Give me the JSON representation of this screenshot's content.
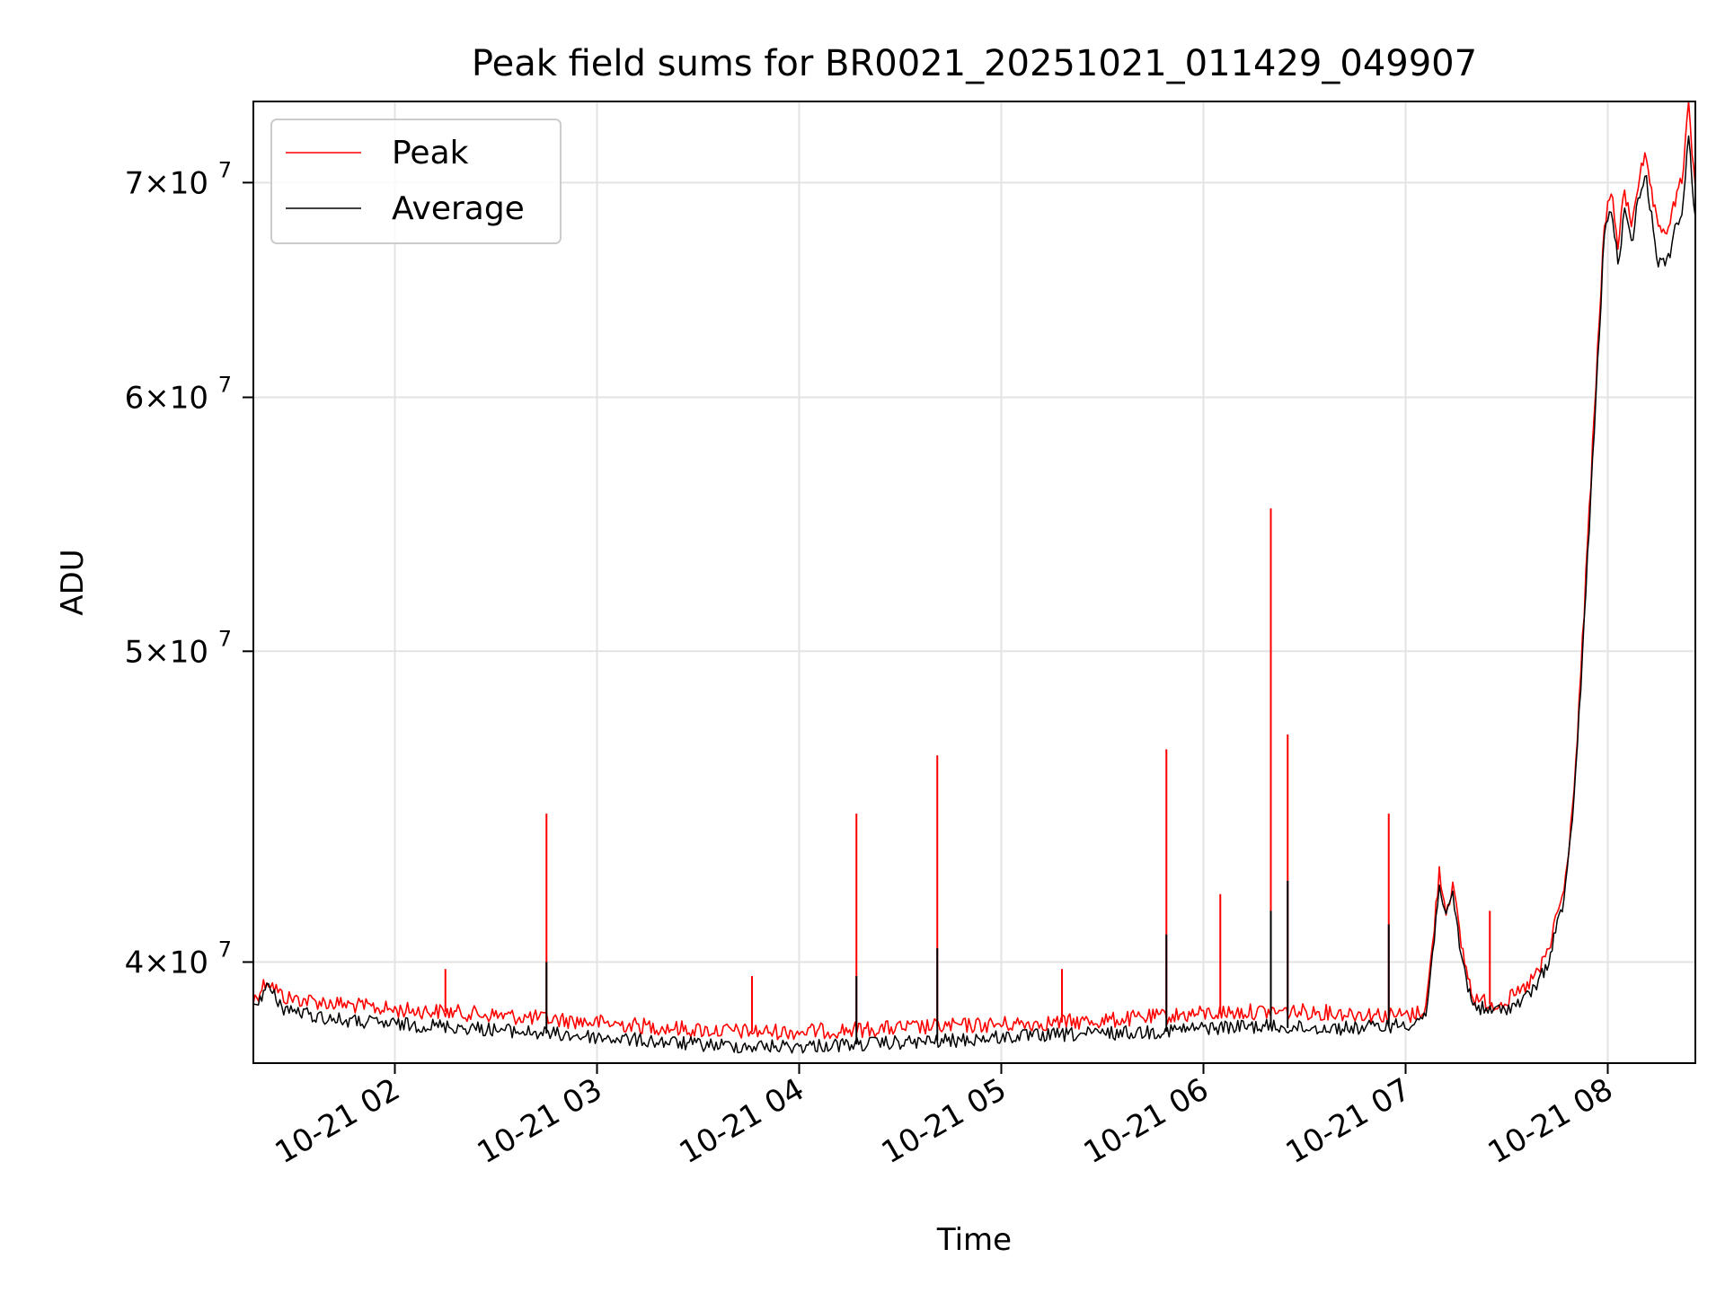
{
  "chart_data": {
    "type": "line",
    "title": "Peak field sums for BR0021_20251021_011429_049907",
    "xlabel": "Time",
    "ylabel": "ADU",
    "xlim": [
      "2025-10-21 01:18",
      "2025-10-21 08:26"
    ],
    "ylim": [
      37200000,
      74200000
    ],
    "yscale": "log",
    "grid": true,
    "legend_position": "upper-left",
    "x_ticks": [
      {
        "value": "2025-10-21 02:00",
        "label": "10-21 02"
      },
      {
        "value": "2025-10-21 03:00",
        "label": "10-21 03"
      },
      {
        "value": "2025-10-21 04:00",
        "label": "10-21 04"
      },
      {
        "value": "2025-10-21 05:00",
        "label": "10-21 05"
      },
      {
        "value": "2025-10-21 06:00",
        "label": "10-21 06"
      },
      {
        "value": "2025-10-21 07:00",
        "label": "10-21 07"
      },
      {
        "value": "2025-10-21 08:00",
        "label": "10-21 08"
      }
    ],
    "y_ticks": [
      {
        "value": 40000000,
        "mantissa": "4",
        "exponent": "7"
      },
      {
        "value": 50000000,
        "mantissa": "5",
        "exponent": "7"
      },
      {
        "value": 60000000,
        "mantissa": "6",
        "exponent": "7"
      },
      {
        "value": 70000000,
        "mantissa": "7",
        "exponent": "7"
      }
    ],
    "series": [
      {
        "name": "Peak",
        "color": "#ff0000",
        "points": [
          [
            "2025-10-21 01:18",
            38900000
          ],
          [
            "2025-10-21 01:22",
            39500000
          ],
          [
            "2025-10-21 01:27",
            39000000
          ],
          [
            "2025-10-21 01:35",
            38900000
          ],
          [
            "2025-10-21 01:45",
            38800000
          ],
          [
            "2025-10-21 02:00",
            38650000
          ],
          [
            "2025-10-21 02:15",
            38600000
          ],
          [
            "2025-10-21 02:30",
            38500000
          ],
          [
            "2025-10-21 02:45",
            38400000
          ],
          [
            "2025-10-21 03:00",
            38300000
          ],
          [
            "2025-10-21 03:15",
            38200000
          ],
          [
            "2025-10-21 03:30",
            38100000
          ],
          [
            "2025-10-21 03:45",
            38050000
          ],
          [
            "2025-10-21 04:00",
            38050000
          ],
          [
            "2025-10-21 04:15",
            38100000
          ],
          [
            "2025-10-21 04:30",
            38150000
          ],
          [
            "2025-10-21 04:45",
            38200000
          ],
          [
            "2025-10-21 05:00",
            38250000
          ],
          [
            "2025-10-21 05:15",
            38300000
          ],
          [
            "2025-10-21 05:30",
            38350000
          ],
          [
            "2025-10-21 05:45",
            38450000
          ],
          [
            "2025-10-21 06:00",
            38550000
          ],
          [
            "2025-10-21 06:15",
            38600000
          ],
          [
            "2025-10-21 06:30",
            38600000
          ],
          [
            "2025-10-21 06:45",
            38550000
          ],
          [
            "2025-10-21 06:55",
            38500000
          ],
          [
            "2025-10-21 07:02",
            38500000
          ],
          [
            "2025-10-21 07:06",
            38700000
          ],
          [
            "2025-10-21 07:08",
            40500000
          ],
          [
            "2025-10-21 07:10",
            42700000
          ],
          [
            "2025-10-21 07:12",
            41500000
          ],
          [
            "2025-10-21 07:14",
            42300000
          ],
          [
            "2025-10-21 07:16",
            40800000
          ],
          [
            "2025-10-21 07:18",
            39800000
          ],
          [
            "2025-10-21 07:20",
            39000000
          ],
          [
            "2025-10-21 07:25",
            38800000
          ],
          [
            "2025-10-21 07:30",
            38900000
          ],
          [
            "2025-10-21 07:35",
            39200000
          ],
          [
            "2025-10-21 07:40",
            39800000
          ],
          [
            "2025-10-21 07:43",
            40500000
          ],
          [
            "2025-10-21 07:45",
            41500000
          ],
          [
            "2025-10-21 07:47",
            42000000
          ],
          [
            "2025-10-21 07:49",
            44000000
          ],
          [
            "2025-10-21 07:51",
            47000000
          ],
          [
            "2025-10-21 07:53",
            51500000
          ],
          [
            "2025-10-21 07:55",
            56500000
          ],
          [
            "2025-10-21 07:57",
            62000000
          ],
          [
            "2025-10-21 07:59",
            68000000
          ],
          [
            "2025-10-21 08:01",
            69500000
          ],
          [
            "2025-10-21 08:03",
            67000000
          ],
          [
            "2025-10-21 08:05",
            69500000
          ],
          [
            "2025-10-21 08:07",
            68000000
          ],
          [
            "2025-10-21 08:09",
            70000000
          ],
          [
            "2025-10-21 08:11",
            71200000
          ],
          [
            "2025-10-21 08:13",
            69500000
          ],
          [
            "2025-10-21 08:15",
            67500000
          ],
          [
            "2025-10-21 08:18",
            67800000
          ],
          [
            "2025-10-21 08:20",
            69000000
          ],
          [
            "2025-10-21 08:22",
            70200000
          ],
          [
            "2025-10-21 08:24",
            73800000
          ],
          [
            "2025-10-21 08:26",
            69800000
          ]
        ],
        "spikes": [
          [
            "2025-10-21 02:45",
            44500000
          ],
          [
            "2025-10-21 04:17",
            44500000
          ],
          [
            "2025-10-21 04:41",
            46400000
          ],
          [
            "2025-10-21 05:49",
            46600000
          ],
          [
            "2025-10-21 06:05",
            42000000
          ],
          [
            "2025-10-21 06:20",
            55400000
          ],
          [
            "2025-10-21 06:25",
            47100000
          ],
          [
            "2025-10-21 06:55",
            44500000
          ],
          [
            "2025-10-21 07:25",
            41500000
          ],
          [
            "2025-10-21 05:18",
            39800000
          ],
          [
            "2025-10-21 03:46",
            39600000
          ],
          [
            "2025-10-21 02:15",
            39800000
          ]
        ]
      },
      {
        "name": "Average",
        "color": "#000000",
        "points": [
          [
            "2025-10-21 01:18",
            38700000
          ],
          [
            "2025-10-21 01:22",
            39300000
          ],
          [
            "2025-10-21 01:27",
            38700000
          ],
          [
            "2025-10-21 01:35",
            38500000
          ],
          [
            "2025-10-21 01:45",
            38350000
          ],
          [
            "2025-10-21 02:00",
            38250000
          ],
          [
            "2025-10-21 02:15",
            38200000
          ],
          [
            "2025-10-21 02:30",
            38100000
          ],
          [
            "2025-10-21 02:45",
            38000000
          ],
          [
            "2025-10-21 03:00",
            37900000
          ],
          [
            "2025-10-21 03:15",
            37800000
          ],
          [
            "2025-10-21 03:30",
            37700000
          ],
          [
            "2025-10-21 03:45",
            37650000
          ],
          [
            "2025-10-21 04:00",
            37650000
          ],
          [
            "2025-10-21 04:15",
            37700000
          ],
          [
            "2025-10-21 04:30",
            37750000
          ],
          [
            "2025-10-21 04:45",
            37800000
          ],
          [
            "2025-10-21 05:00",
            37900000
          ],
          [
            "2025-10-21 05:15",
            37950000
          ],
          [
            "2025-10-21 05:30",
            38000000
          ],
          [
            "2025-10-21 05:45",
            38050000
          ],
          [
            "2025-10-21 06:00",
            38150000
          ],
          [
            "2025-10-21 06:15",
            38200000
          ],
          [
            "2025-10-21 06:30",
            38150000
          ],
          [
            "2025-10-21 06:45",
            38150000
          ],
          [
            "2025-10-21 06:55",
            38200000
          ],
          [
            "2025-10-21 07:02",
            38300000
          ],
          [
            "2025-10-21 07:06",
            38500000
          ],
          [
            "2025-10-21 07:08",
            40200000
          ],
          [
            "2025-10-21 07:10",
            42400000
          ],
          [
            "2025-10-21 07:12",
            41200000
          ],
          [
            "2025-10-21 07:14",
            42000000
          ],
          [
            "2025-10-21 07:16",
            40500000
          ],
          [
            "2025-10-21 07:18",
            39500000
          ],
          [
            "2025-10-21 07:20",
            38800000
          ],
          [
            "2025-10-21 07:25",
            38600000
          ],
          [
            "2025-10-21 07:30",
            38700000
          ],
          [
            "2025-10-21 07:35",
            38900000
          ],
          [
            "2025-10-21 07:40",
            39500000
          ],
          [
            "2025-10-21 07:43",
            40200000
          ],
          [
            "2025-10-21 07:45",
            41200000
          ],
          [
            "2025-10-21 07:47",
            41700000
          ],
          [
            "2025-10-21 07:49",
            43700000
          ],
          [
            "2025-10-21 07:51",
            46700000
          ],
          [
            "2025-10-21 07:53",
            51000000
          ],
          [
            "2025-10-21 07:55",
            56000000
          ],
          [
            "2025-10-21 07:57",
            61400000
          ],
          [
            "2025-10-21 07:59",
            67500000
          ],
          [
            "2025-10-21 08:01",
            68800000
          ],
          [
            "2025-10-21 08:03",
            66000000
          ],
          [
            "2025-10-21 08:05",
            68500000
          ],
          [
            "2025-10-21 08:07",
            67000000
          ],
          [
            "2025-10-21 08:09",
            69000000
          ],
          [
            "2025-10-21 08:11",
            70500000
          ],
          [
            "2025-10-21 08:13",
            68500000
          ],
          [
            "2025-10-21 08:15",
            66000000
          ],
          [
            "2025-10-21 08:18",
            66300000
          ],
          [
            "2025-10-21 08:20",
            67800000
          ],
          [
            "2025-10-21 08:22",
            68500000
          ],
          [
            "2025-10-21 08:24",
            72200000
          ],
          [
            "2025-10-21 08:26",
            68300000
          ]
        ],
        "spikes": [
          [
            "2025-10-21 02:45",
            40000000
          ],
          [
            "2025-10-21 04:17",
            39600000
          ],
          [
            "2025-10-21 04:41",
            40400000
          ],
          [
            "2025-10-21 05:49",
            40800000
          ],
          [
            "2025-10-21 06:20",
            41500000
          ],
          [
            "2025-10-21 06:25",
            42400000
          ],
          [
            "2025-10-21 06:55",
            41100000
          ]
        ]
      }
    ]
  }
}
